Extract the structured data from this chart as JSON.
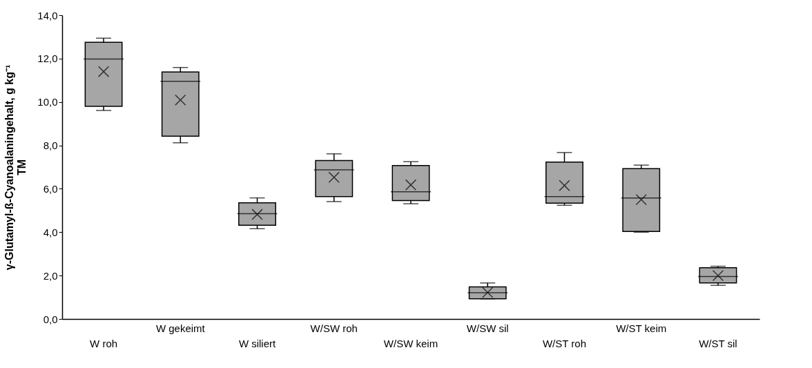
{
  "chart_data": {
    "type": "box",
    "ylabel": "γ-Glutamyl-ß-Cyanoalaningehalt, g kg⁻¹ TM",
    "categories": [
      "W roh",
      "W gekeimt",
      "W siliert",
      "W/SW roh",
      "W/SW keim",
      "W/SW sil",
      "W/ST roh",
      "W/ST keim",
      "W/ST sil"
    ],
    "color": "#a6a6a6",
    "boxes": [
      {
        "low": 9.61,
        "q1": 9.8,
        "median": 11.98,
        "q3": 12.75,
        "high": 12.94,
        "mean": 11.4
      },
      {
        "low": 8.12,
        "q1": 8.42,
        "median": 10.95,
        "q3": 11.38,
        "high": 11.59,
        "mean": 10.09
      },
      {
        "low": 4.16,
        "q1": 4.32,
        "median": 4.85,
        "q3": 5.35,
        "high": 5.58,
        "mean": 4.82
      },
      {
        "low": 5.41,
        "q1": 5.64,
        "median": 6.87,
        "q3": 7.3,
        "high": 7.61,
        "mean": 6.53
      },
      {
        "low": 5.31,
        "q1": 5.46,
        "median": 5.86,
        "q3": 7.07,
        "high": 7.25,
        "mean": 6.18
      },
      {
        "low": 0.93,
        "q1": 0.93,
        "median": 1.21,
        "q3": 1.48,
        "high": 1.66,
        "mean": 1.22
      },
      {
        "low": 5.24,
        "q1": 5.34,
        "median": 5.64,
        "q3": 7.23,
        "high": 7.67,
        "mean": 6.15
      },
      {
        "low": 4.0,
        "q1": 4.03,
        "median": 5.58,
        "q3": 6.93,
        "high": 7.09,
        "mean": 5.5
      },
      {
        "low": 1.55,
        "q1": 1.66,
        "median": 1.96,
        "q3": 2.36,
        "high": 2.43,
        "mean": 2.0
      }
    ],
    "ylim": [
      0,
      14
    ],
    "yticks": [
      {
        "value": 0,
        "label": "0,0"
      },
      {
        "value": 2,
        "label": "2,0"
      },
      {
        "value": 4,
        "label": "4,0"
      },
      {
        "value": 6,
        "label": "6,0"
      },
      {
        "value": 8,
        "label": "8,0"
      },
      {
        "value": 10,
        "label": "10,0"
      },
      {
        "value": 12,
        "label": "12,0"
      },
      {
        "value": 14,
        "label": "14,0"
      }
    ],
    "grid": false
  }
}
